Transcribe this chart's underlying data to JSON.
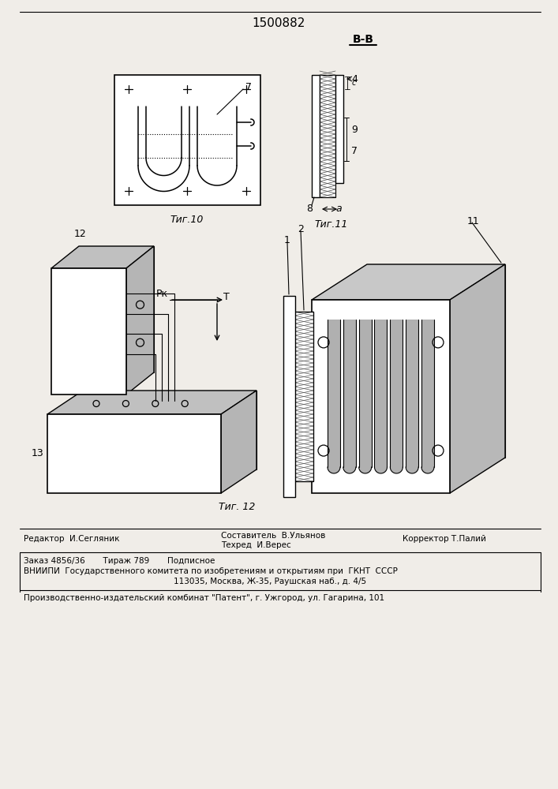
{
  "patent_number": "1500882",
  "bg_color": "#f0ede8",
  "fig10_caption": "Τиг.10",
  "fig11_caption": "Τиг.11",
  "fig12_caption": "Τиг. 12",
  "section_label": "B-B",
  "label_7": "7",
  "label_4": "4",
  "label_9": "9",
  "label_8": "8",
  "label_a": "a",
  "label_1": "1",
  "label_2": "2",
  "label_11": "11",
  "label_12": "12",
  "label_13": "13",
  "label_Pk": "Pк",
  "label_T": "T",
  "footer_editor": "Редактор  И.Сегляник",
  "footer_author": "Составитель  В.Ульянов",
  "footer_tech": "Техред  И.Верес",
  "footer_corrector": "Корректор Т.Палий",
  "footer_order": "Заказ 4856/36",
  "footer_tirazh": "Тираж 789",
  "footer_podp": "Подписное",
  "footer_vnipi": "ВНИИПИ  Государственного комитета по изобретениям и открытиям при  ГКНТ  СССР",
  "footer_addr": "113035, Москва, Ж-35, Раушская наб., д. 4/5",
  "footer_patent": "Производственно-издательский комбинат \"Патент\", г. Ужгород, ул. Гагарина, 101"
}
